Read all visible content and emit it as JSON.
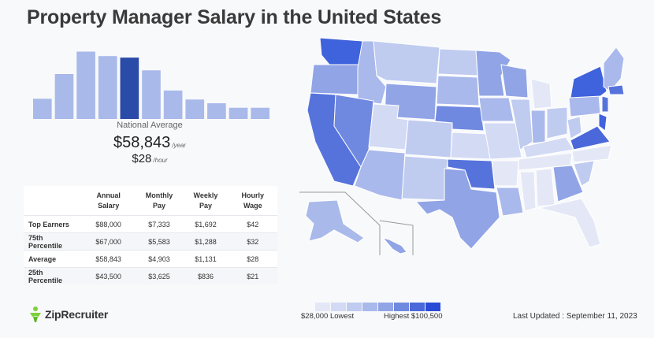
{
  "title": "Property Manager Salary in the United States",
  "national": {
    "label": "National Average",
    "annual": "$58,843",
    "annual_unit": "/year",
    "hourly": "$28",
    "hourly_unit": "/hour"
  },
  "chart_data": {
    "type": "bar",
    "title": "Property Manager Salary in the United States",
    "values": [
      27,
      60,
      90,
      84,
      82,
      65,
      38,
      26,
      21,
      15,
      15
    ],
    "highlight_index": 4,
    "ylim": [
      0,
      100
    ],
    "xlabel": "",
    "ylabel": "",
    "colors": {
      "bar": "#a9b9ea",
      "highlight": "#2b4ba8"
    }
  },
  "table": {
    "headers": [
      "",
      "Annual Salary",
      "Monthly Pay",
      "Weekly Pay",
      "Hourly Wage"
    ],
    "rows": [
      [
        "Top Earners",
        "$88,000",
        "$7,333",
        "$1,692",
        "$42"
      ],
      [
        "75th Percentile",
        "$67,000",
        "$5,583",
        "$1,288",
        "$32"
      ],
      [
        "Average",
        "$58,843",
        "$4,903",
        "$1,131",
        "$28"
      ],
      [
        "25th Percentile",
        "$43,500",
        "$3,625",
        "$836",
        "$21"
      ]
    ]
  },
  "legend": {
    "low": "$28,000 Lowest",
    "high": "Highest $100,500",
    "colors": [
      "#e4e8f6",
      "#d3daf4",
      "#c0cbf0",
      "#aab9eb",
      "#91a4e6",
      "#7089e0",
      "#4a68d9",
      "#2a4bd6"
    ]
  },
  "updated": "Last Updated : September 11, 2023",
  "logo": {
    "text": "ZipRecruiter",
    "icon": "ziprecruiter-logo-icon"
  }
}
